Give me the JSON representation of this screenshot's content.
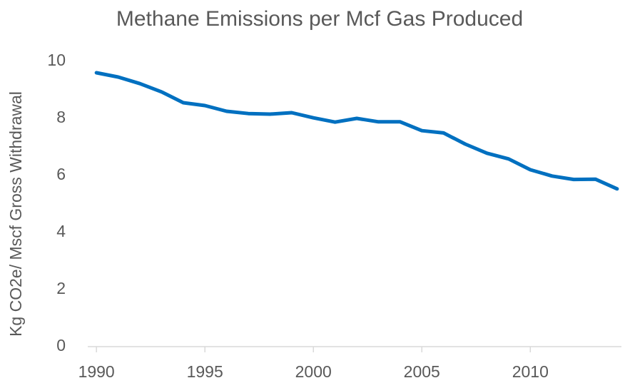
{
  "chart_data": {
    "type": "line",
    "title": "Methane Emissions per Mcf Gas Produced",
    "y_label": "Kg CO2e/ Mscf Gross Withdrawal",
    "x": [
      1990,
      1991,
      1992,
      1993,
      1994,
      1995,
      1996,
      1997,
      1998,
      1999,
      2000,
      2001,
      2002,
      2003,
      2004,
      2005,
      2006,
      2007,
      2008,
      2009,
      2010,
      2011,
      2012,
      2013,
      2014
    ],
    "series": [
      {
        "name": "Methane Emissions",
        "color": "#0070c0",
        "values": [
          9.6,
          9.45,
          9.22,
          8.93,
          8.55,
          8.45,
          8.25,
          8.17,
          8.15,
          8.2,
          8.02,
          7.87,
          8.0,
          7.88,
          7.88,
          7.57,
          7.49,
          7.1,
          6.78,
          6.58,
          6.2,
          5.98,
          5.86,
          5.87,
          5.53
        ]
      }
    ],
    "xlim": [
      1989.6,
      2014.2
    ],
    "xticks": [
      1990,
      1995,
      2000,
      2005,
      2010
    ],
    "ylim": [
      0,
      10
    ],
    "yticks": [
      0,
      2,
      4,
      6,
      8,
      10
    ],
    "grid": false
  }
}
